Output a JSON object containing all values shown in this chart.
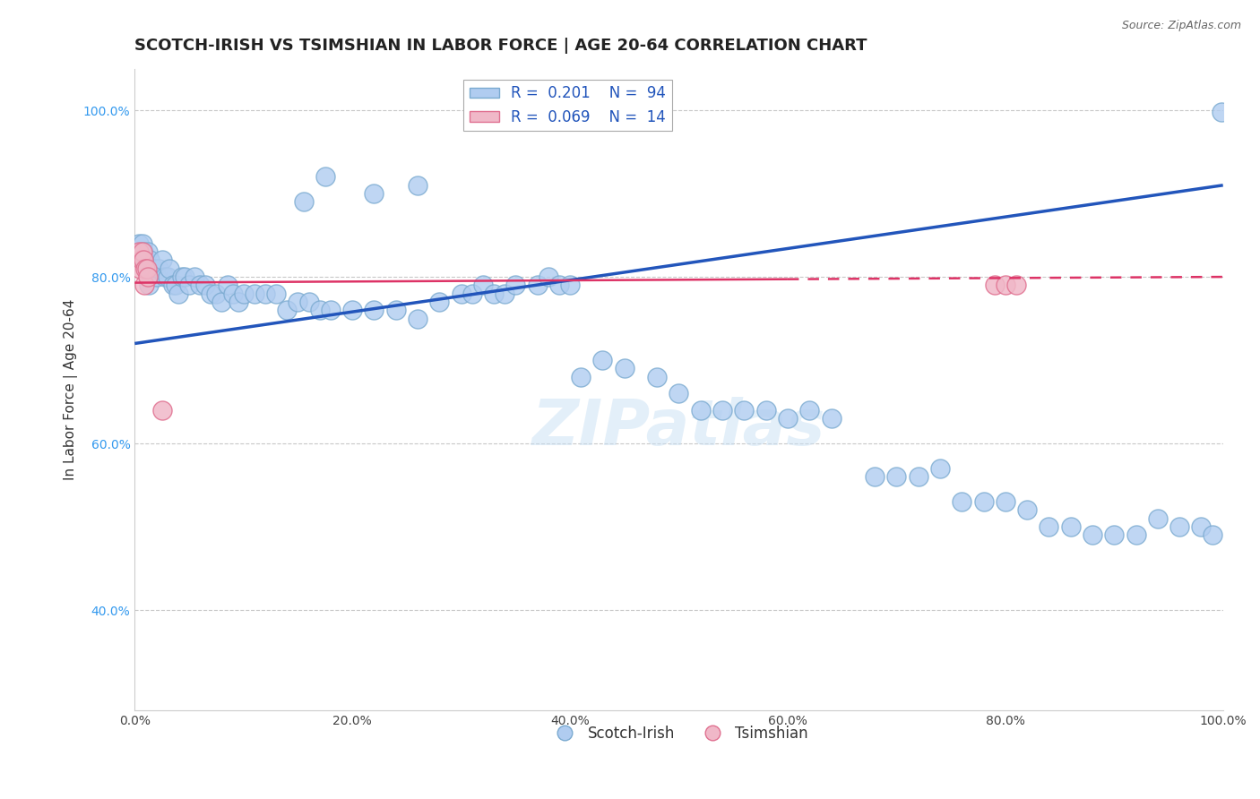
{
  "title": "SCOTCH-IRISH VS TSIMSHIAN IN LABOR FORCE | AGE 20-64 CORRELATION CHART",
  "source_text": "Source: ZipAtlas.com",
  "ylabel": "In Labor Force | Age 20-64",
  "xlim": [
    0.0,
    1.0
  ],
  "ylim": [
    0.28,
    1.05
  ],
  "xticks": [
    0.0,
    0.2,
    0.4,
    0.6,
    0.8,
    1.0
  ],
  "xtick_labels": [
    "0.0%",
    "20.0%",
    "40.0%",
    "60.0%",
    "80.0%",
    "100.0%"
  ],
  "yticks": [
    0.4,
    0.6,
    0.8,
    1.0
  ],
  "ytick_labels": [
    "40.0%",
    "60.0%",
    "80.0%",
    "100.0%"
  ],
  "grid_color": "#c8c8c8",
  "watermark": "ZIPatlas",
  "blue_scatter_color": "#b0ccf0",
  "blue_scatter_edge": "#7aaad0",
  "pink_scatter_color": "#f0b8c8",
  "pink_scatter_edge": "#e07090",
  "blue_line_color": "#2255bb",
  "pink_line_color": "#dd3366",
  "R_blue": 0.201,
  "N_blue": 94,
  "R_pink": 0.069,
  "N_pink": 14,
  "title_fontsize": 13,
  "axis_label_fontsize": 11,
  "tick_fontsize": 10,
  "legend_fontsize": 12,
  "blue_x": [
    0.003,
    0.004,
    0.005,
    0.006,
    0.007,
    0.008,
    0.009,
    0.01,
    0.011,
    0.012,
    0.013,
    0.014,
    0.015,
    0.016,
    0.018,
    0.02,
    0.022,
    0.025,
    0.028,
    0.03,
    0.032,
    0.035,
    0.038,
    0.04,
    0.043,
    0.046,
    0.05,
    0.055,
    0.06,
    0.065,
    0.07,
    0.075,
    0.08,
    0.085,
    0.09,
    0.095,
    0.1,
    0.11,
    0.12,
    0.13,
    0.14,
    0.15,
    0.16,
    0.17,
    0.18,
    0.2,
    0.22,
    0.24,
    0.26,
    0.28,
    0.3,
    0.31,
    0.32,
    0.33,
    0.34,
    0.35,
    0.37,
    0.38,
    0.39,
    0.4,
    0.41,
    0.43,
    0.45,
    0.48,
    0.5,
    0.52,
    0.54,
    0.56,
    0.58,
    0.6,
    0.62,
    0.64,
    0.68,
    0.7,
    0.72,
    0.74,
    0.76,
    0.78,
    0.8,
    0.82,
    0.84,
    0.86,
    0.88,
    0.9,
    0.92,
    0.94,
    0.96,
    0.98,
    0.99,
    0.999,
    0.22,
    0.26,
    0.155,
    0.175
  ],
  "blue_y": [
    0.82,
    0.84,
    0.83,
    0.82,
    0.84,
    0.83,
    0.82,
    0.82,
    0.81,
    0.83,
    0.79,
    0.82,
    0.81,
    0.81,
    0.81,
    0.8,
    0.81,
    0.82,
    0.8,
    0.8,
    0.81,
    0.79,
    0.79,
    0.78,
    0.8,
    0.8,
    0.79,
    0.8,
    0.79,
    0.79,
    0.78,
    0.78,
    0.77,
    0.79,
    0.78,
    0.77,
    0.78,
    0.78,
    0.78,
    0.78,
    0.76,
    0.77,
    0.77,
    0.76,
    0.76,
    0.76,
    0.76,
    0.76,
    0.75,
    0.77,
    0.78,
    0.78,
    0.79,
    0.78,
    0.78,
    0.79,
    0.79,
    0.8,
    0.79,
    0.79,
    0.68,
    0.7,
    0.69,
    0.68,
    0.66,
    0.64,
    0.64,
    0.64,
    0.64,
    0.63,
    0.64,
    0.63,
    0.56,
    0.56,
    0.56,
    0.57,
    0.53,
    0.53,
    0.53,
    0.52,
    0.5,
    0.5,
    0.49,
    0.49,
    0.49,
    0.51,
    0.5,
    0.5,
    0.49,
    0.998,
    0.9,
    0.91,
    0.89,
    0.92
  ],
  "pink_x": [
    0.003,
    0.004,
    0.005,
    0.006,
    0.007,
    0.008,
    0.009,
    0.01,
    0.011,
    0.012,
    0.025,
    0.79,
    0.8,
    0.81
  ],
  "pink_y": [
    0.82,
    0.83,
    0.81,
    0.82,
    0.83,
    0.82,
    0.79,
    0.81,
    0.81,
    0.8,
    0.64,
    0.79,
    0.79,
    0.79
  ],
  "blue_line_x": [
    0.0,
    1.0
  ],
  "blue_line_y": [
    0.72,
    0.91
  ],
  "pink_line_x": [
    0.0,
    1.0
  ],
  "pink_line_y": [
    0.793,
    0.8
  ]
}
